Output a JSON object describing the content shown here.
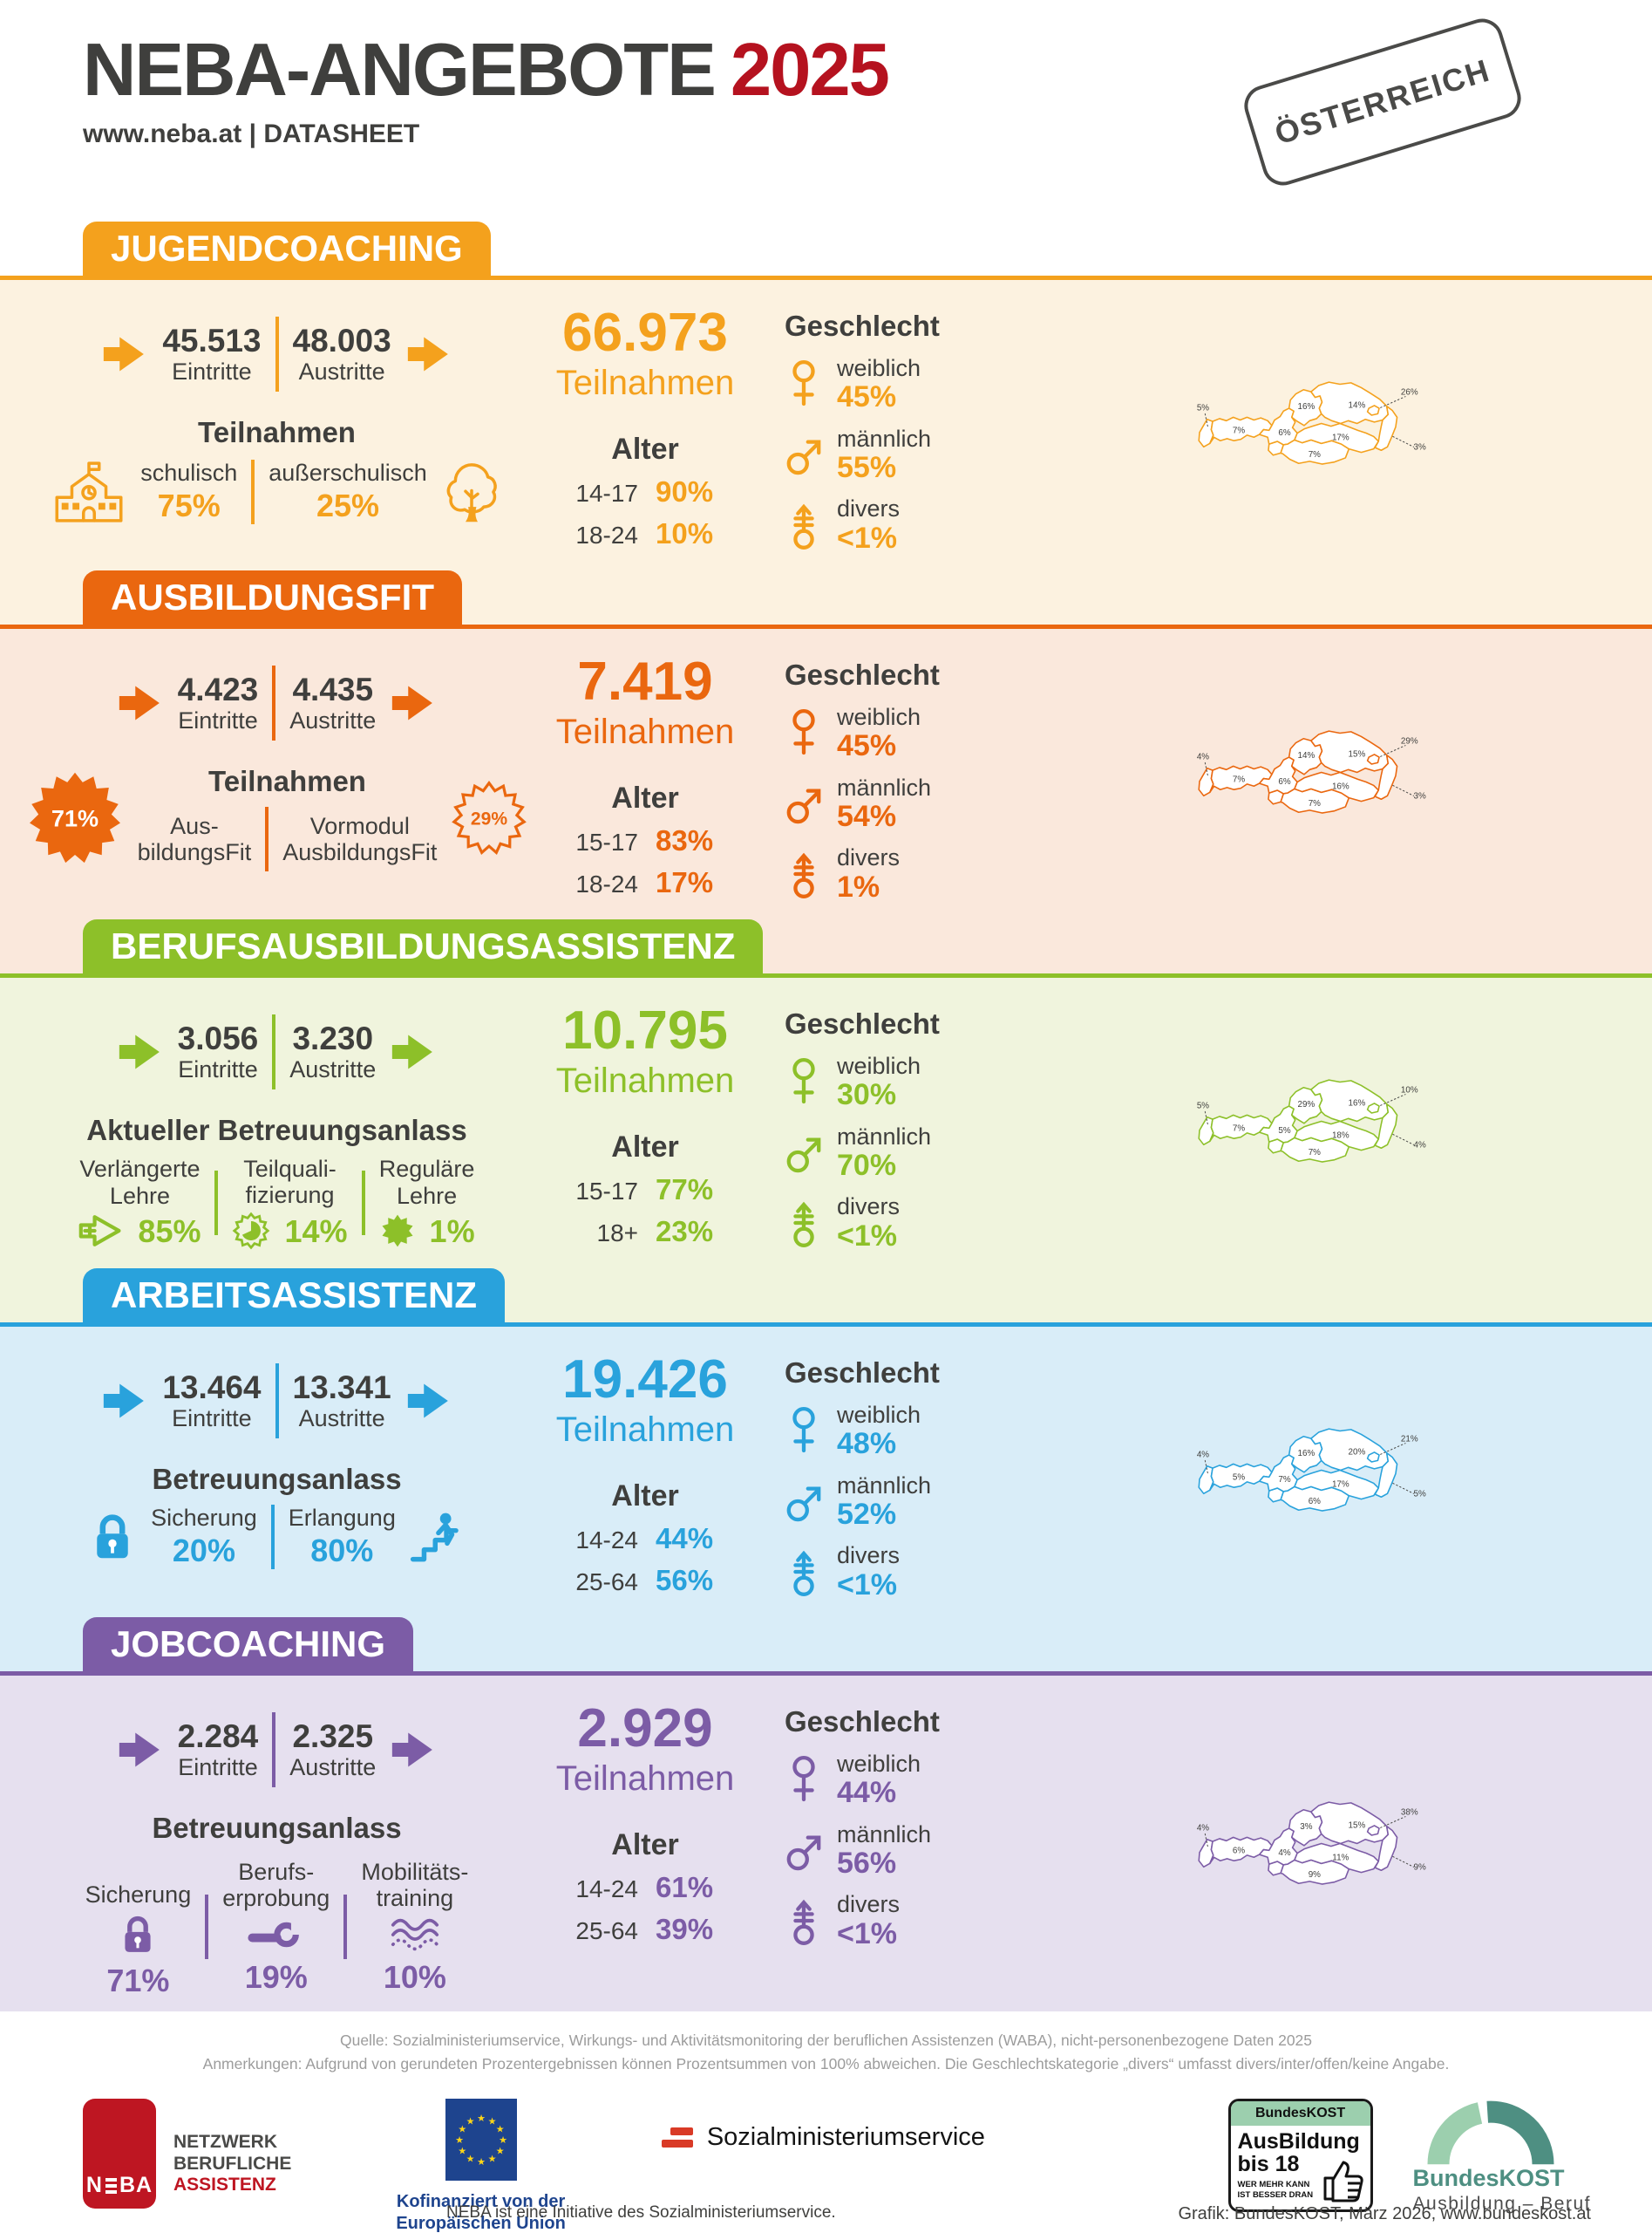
{
  "header": {
    "title": "NEBA-ANGEBOTE",
    "year": "2025",
    "subtitle": "www.neba.at  |  DATASHEET",
    "stamp": "ÖSTERREICH",
    "accent_red": "#B5121F"
  },
  "labels": {
    "eintritte": "Eintritte",
    "austritte": "Austritte",
    "teilnahmen": "Teilnahmen",
    "alter": "Alter",
    "geschlecht": "Geschlecht",
    "weiblich": "weiblich",
    "maennlich": "männlich",
    "divers": "divers"
  },
  "sections": [
    {
      "title": "JUGENDCOACHING",
      "color": "#F4A11D",
      "bg": "#FCF2E0",
      "eintritte": "45.513",
      "austritte": "48.003",
      "teilnahmen": "66.973",
      "breakdown": {
        "heading": "Teilnahmen",
        "items": [
          {
            "label": "schulisch",
            "value": "75%"
          },
          {
            "label": "außerschulisch",
            "value": "25%"
          }
        ]
      },
      "alter": [
        {
          "label": "14-17",
          "value": "90%"
        },
        {
          "label": "18-24",
          "value": "10%"
        }
      ],
      "geschlecht": {
        "weiblich": "45%",
        "maennlich": "55%",
        "divers": "<1%"
      },
      "map": {
        "vorarlberg": "5%",
        "tirol": "7%",
        "salzburg": "6%",
        "oberoesterreich": "16%",
        "niederoesterreich": "14%",
        "wien": "26%",
        "steiermark": "17%",
        "kaernten": "7%",
        "burgenland": "3%"
      }
    },
    {
      "title": "AUSBILDUNGSFIT",
      "color": "#EA670F",
      "bg": "#FAE8DC",
      "eintritte": "4.423",
      "austritte": "4.435",
      "teilnahmen": "7.419",
      "breakdown": {
        "heading": "Teilnahmen",
        "items": [
          {
            "label": "Aus-\nbildungsFit",
            "value": "71%"
          },
          {
            "label": "Vormodul\nAusbildungsFit",
            "value": "29%"
          }
        ]
      },
      "alter": [
        {
          "label": "15-17",
          "value": "83%"
        },
        {
          "label": "18-24",
          "value": "17%"
        }
      ],
      "geschlecht": {
        "weiblich": "45%",
        "maennlich": "54%",
        "divers": "1%"
      },
      "map": {
        "vorarlberg": "4%",
        "tirol": "7%",
        "salzburg": "6%",
        "oberoesterreich": "14%",
        "niederoesterreich": "15%",
        "wien": "29%",
        "steiermark": "16%",
        "kaernten": "7%",
        "burgenland": "3%"
      }
    },
    {
      "title": "BERUFSAUSBILDUNGSASSISTENZ",
      "color": "#8DC029",
      "bg": "#F0F4DD",
      "eintritte": "3.056",
      "austritte": "3.230",
      "teilnahmen": "10.795",
      "breakdown": {
        "heading": "Aktueller Betreuungsanlass",
        "items": [
          {
            "label": "Verlängerte\nLehre",
            "value": "85%"
          },
          {
            "label": "Teilquali-\nfizierung",
            "value": "14%"
          },
          {
            "label": "Reguläre\nLehre",
            "value": "1%"
          }
        ]
      },
      "alter": [
        {
          "label": "15-17",
          "value": "77%"
        },
        {
          "label": "18+",
          "value": "23%"
        }
      ],
      "geschlecht": {
        "weiblich": "30%",
        "maennlich": "70%",
        "divers": "<1%"
      },
      "map": {
        "vorarlberg": "5%",
        "tirol": "7%",
        "salzburg": "5%",
        "oberoesterreich": "29%",
        "niederoesterreich": "16%",
        "wien": "10%",
        "steiermark": "18%",
        "kaernten": "7%",
        "burgenland": "4%"
      }
    },
    {
      "title": "ARBEITSASSISTENZ",
      "color": "#29A2DC",
      "bg": "#D9EDF8",
      "eintritte": "13.464",
      "austritte": "13.341",
      "teilnahmen": "19.426",
      "breakdown": {
        "heading": "Betreuungsanlass",
        "items": [
          {
            "label": "Sicherung",
            "value": "20%"
          },
          {
            "label": "Erlangung",
            "value": "80%"
          }
        ]
      },
      "alter": [
        {
          "label": "14-24",
          "value": "44%"
        },
        {
          "label": "25-64",
          "value": "56%"
        }
      ],
      "geschlecht": {
        "weiblich": "48%",
        "maennlich": "52%",
        "divers": "<1%"
      },
      "map": {
        "vorarlberg": "4%",
        "tirol": "5%",
        "salzburg": "7%",
        "oberoesterreich": "16%",
        "niederoesterreich": "20%",
        "wien": "21%",
        "steiermark": "17%",
        "kaernten": "6%",
        "burgenland": "5%"
      }
    },
    {
      "title": "JOBCOACHING",
      "color": "#7C5CA6",
      "bg": "#E6E0EF",
      "eintritte": "2.284",
      "austritte": "2.325",
      "teilnahmen": "2.929",
      "breakdown": {
        "heading": "Betreuungsanlass",
        "items": [
          {
            "label": "Sicherung",
            "value": "71%"
          },
          {
            "label": "Berufs-\nerprobung",
            "value": "19%"
          },
          {
            "label": "Mobilitäts-\ntraining",
            "value": "10%"
          }
        ]
      },
      "alter": [
        {
          "label": "14-24",
          "value": "61%"
        },
        {
          "label": "25-64",
          "value": "39%"
        }
      ],
      "geschlecht": {
        "weiblich": "44%",
        "maennlich": "56%",
        "divers": "<1%"
      },
      "map": {
        "vorarlberg": "4%",
        "tirol": "6%",
        "salzburg": "4%",
        "oberoesterreich": "3%",
        "niederoesterreich": "15%",
        "wien": "38%",
        "steiermark": "11%",
        "kaernten": "9%",
        "burgenland": "9%"
      }
    }
  ],
  "footer": {
    "quelle": "Quelle: Sozialministeriumservice, Wirkungs- und Aktivitätsmonitoring der beruflichen Assistenzen (WABA), nicht-personenbezogene Daten 2025",
    "anmerkungen": "Anmerkungen: Aufgrund von gerundeten Prozentergebnissen können Prozentsummen von 100% abweichen. Die Geschlechtskategorie „divers“ umfasst divers/inter/offen/keine Angabe.",
    "neba": {
      "logo_n": "N",
      "logo_ba": "BA",
      "line1": "NETZWERK",
      "line2": "BERUFLICHE",
      "line3": "ASSISTENZ",
      "red": "#BE1622"
    },
    "eu": {
      "caption1": "Kofinanziert von der",
      "caption2": "Europäischen Union",
      "flag_blue": "#1E448E",
      "star_yellow": "#FFD617"
    },
    "sms": {
      "name": "Sozialministeriumservice",
      "initiative": "NEBA ist eine Initiative des Sozialministeriumservice.",
      "flag_red": "#D93A26"
    },
    "badge": {
      "top": "BundesKOST",
      "line1": "AusBildung",
      "line2": "bis 18",
      "small1": "WER MEHR KANN",
      "small2": "IST BESSER DRAN",
      "green": "#9CCFAE"
    },
    "bklogo": {
      "name": "BundesKOST",
      "sub": "Ausbildung – Beruf",
      "teal": "#4E8F82",
      "light": "#9CCFAE"
    },
    "grafik": "Grafik: BundesKOST, März 2026, www.bundeskost.at"
  }
}
